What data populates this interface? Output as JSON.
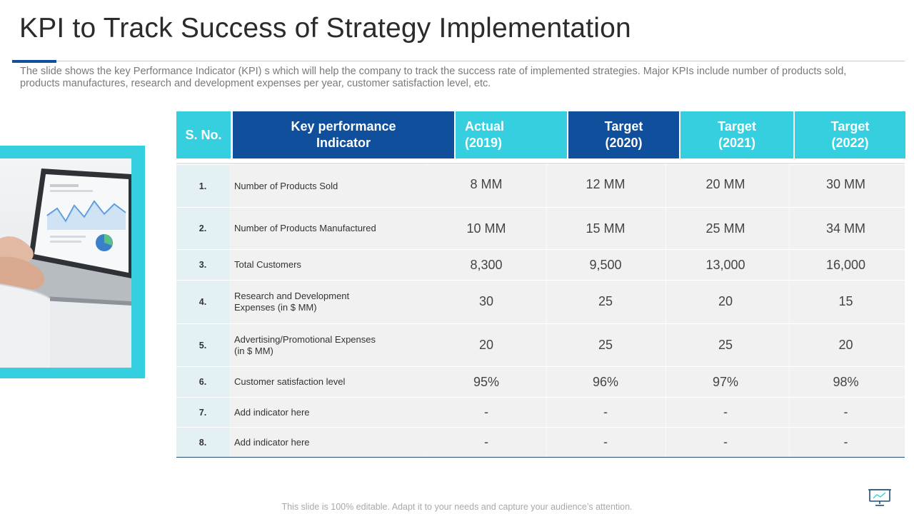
{
  "slide": {
    "title": "KPI to Track Success of Strategy Implementation",
    "subtitle": "The slide shows the key Performance Indicator (KPI) s which will help the company to track the success rate of implemented strategies. Major KPIs include number of products sold, products manufactures,  research and development  expenses per year, customer satisfaction level, etc.",
    "footer": "This slide is 100% editable. Adapt it to your needs and capture your audience’s attention."
  },
  "table": {
    "headers": {
      "sno": "S. No.",
      "kpi": [
        "Key performance",
        "Indicator"
      ],
      "actual_2019": [
        "Actual",
        "(2019)"
      ],
      "target_2020": [
        "Target",
        "(2020)"
      ],
      "target_2021": [
        "Target",
        "(2021)"
      ],
      "target_2022": [
        "Target",
        "(2022)"
      ]
    },
    "rows": [
      {
        "sno": "1.",
        "kpi": "Number  of Products Sold",
        "v2019": "8 MM",
        "v2020": "12 MM",
        "v2021": "20 MM",
        "v2022": "30 MM"
      },
      {
        "sno": "2.",
        "kpi": "Number  of Products Manufactured",
        "v2019": "10 MM",
        "v2020": "15 MM",
        "v2021": "25 MM",
        "v2022": "34 MM"
      },
      {
        "sno": "3.",
        "kpi": "Total Customers",
        "v2019": "8,300",
        "v2020": "9,500",
        "v2021": "13,000",
        "v2022": "16,000"
      },
      {
        "sno": "4.",
        "kpi": "Research and Development Expenses (in $ MM)",
        "v2019": "30",
        "v2020": "25",
        "v2021": "20",
        "v2022": "15"
      },
      {
        "sno": "5.",
        "kpi": "Advertising/Promotional  Expenses (in $ MM)",
        "v2019": "20",
        "v2020": "25",
        "v2021": "25",
        "v2022": "20"
      },
      {
        "sno": "6.",
        "kpi": "Customer satisfaction level",
        "v2019": "95%",
        "v2020": "96%",
        "v2021": "97%",
        "v2022": "98%"
      },
      {
        "sno": "7.",
        "kpi": "Add indicator here",
        "v2019": "-",
        "v2020": "-",
        "v2021": "-",
        "v2022": "-"
      },
      {
        "sno": "8.",
        "kpi": "Add indicator here",
        "v2019": "-",
        "v2020": "-",
        "v2021": "-",
        "v2022": "-"
      }
    ]
  },
  "colors": {
    "accent_cyan": "#35cfe0",
    "accent_navy": "#0f4f9b"
  },
  "icons": {
    "picture": "laptop-analytics-photo",
    "footer_icon": "presentation-monitor-icon"
  }
}
